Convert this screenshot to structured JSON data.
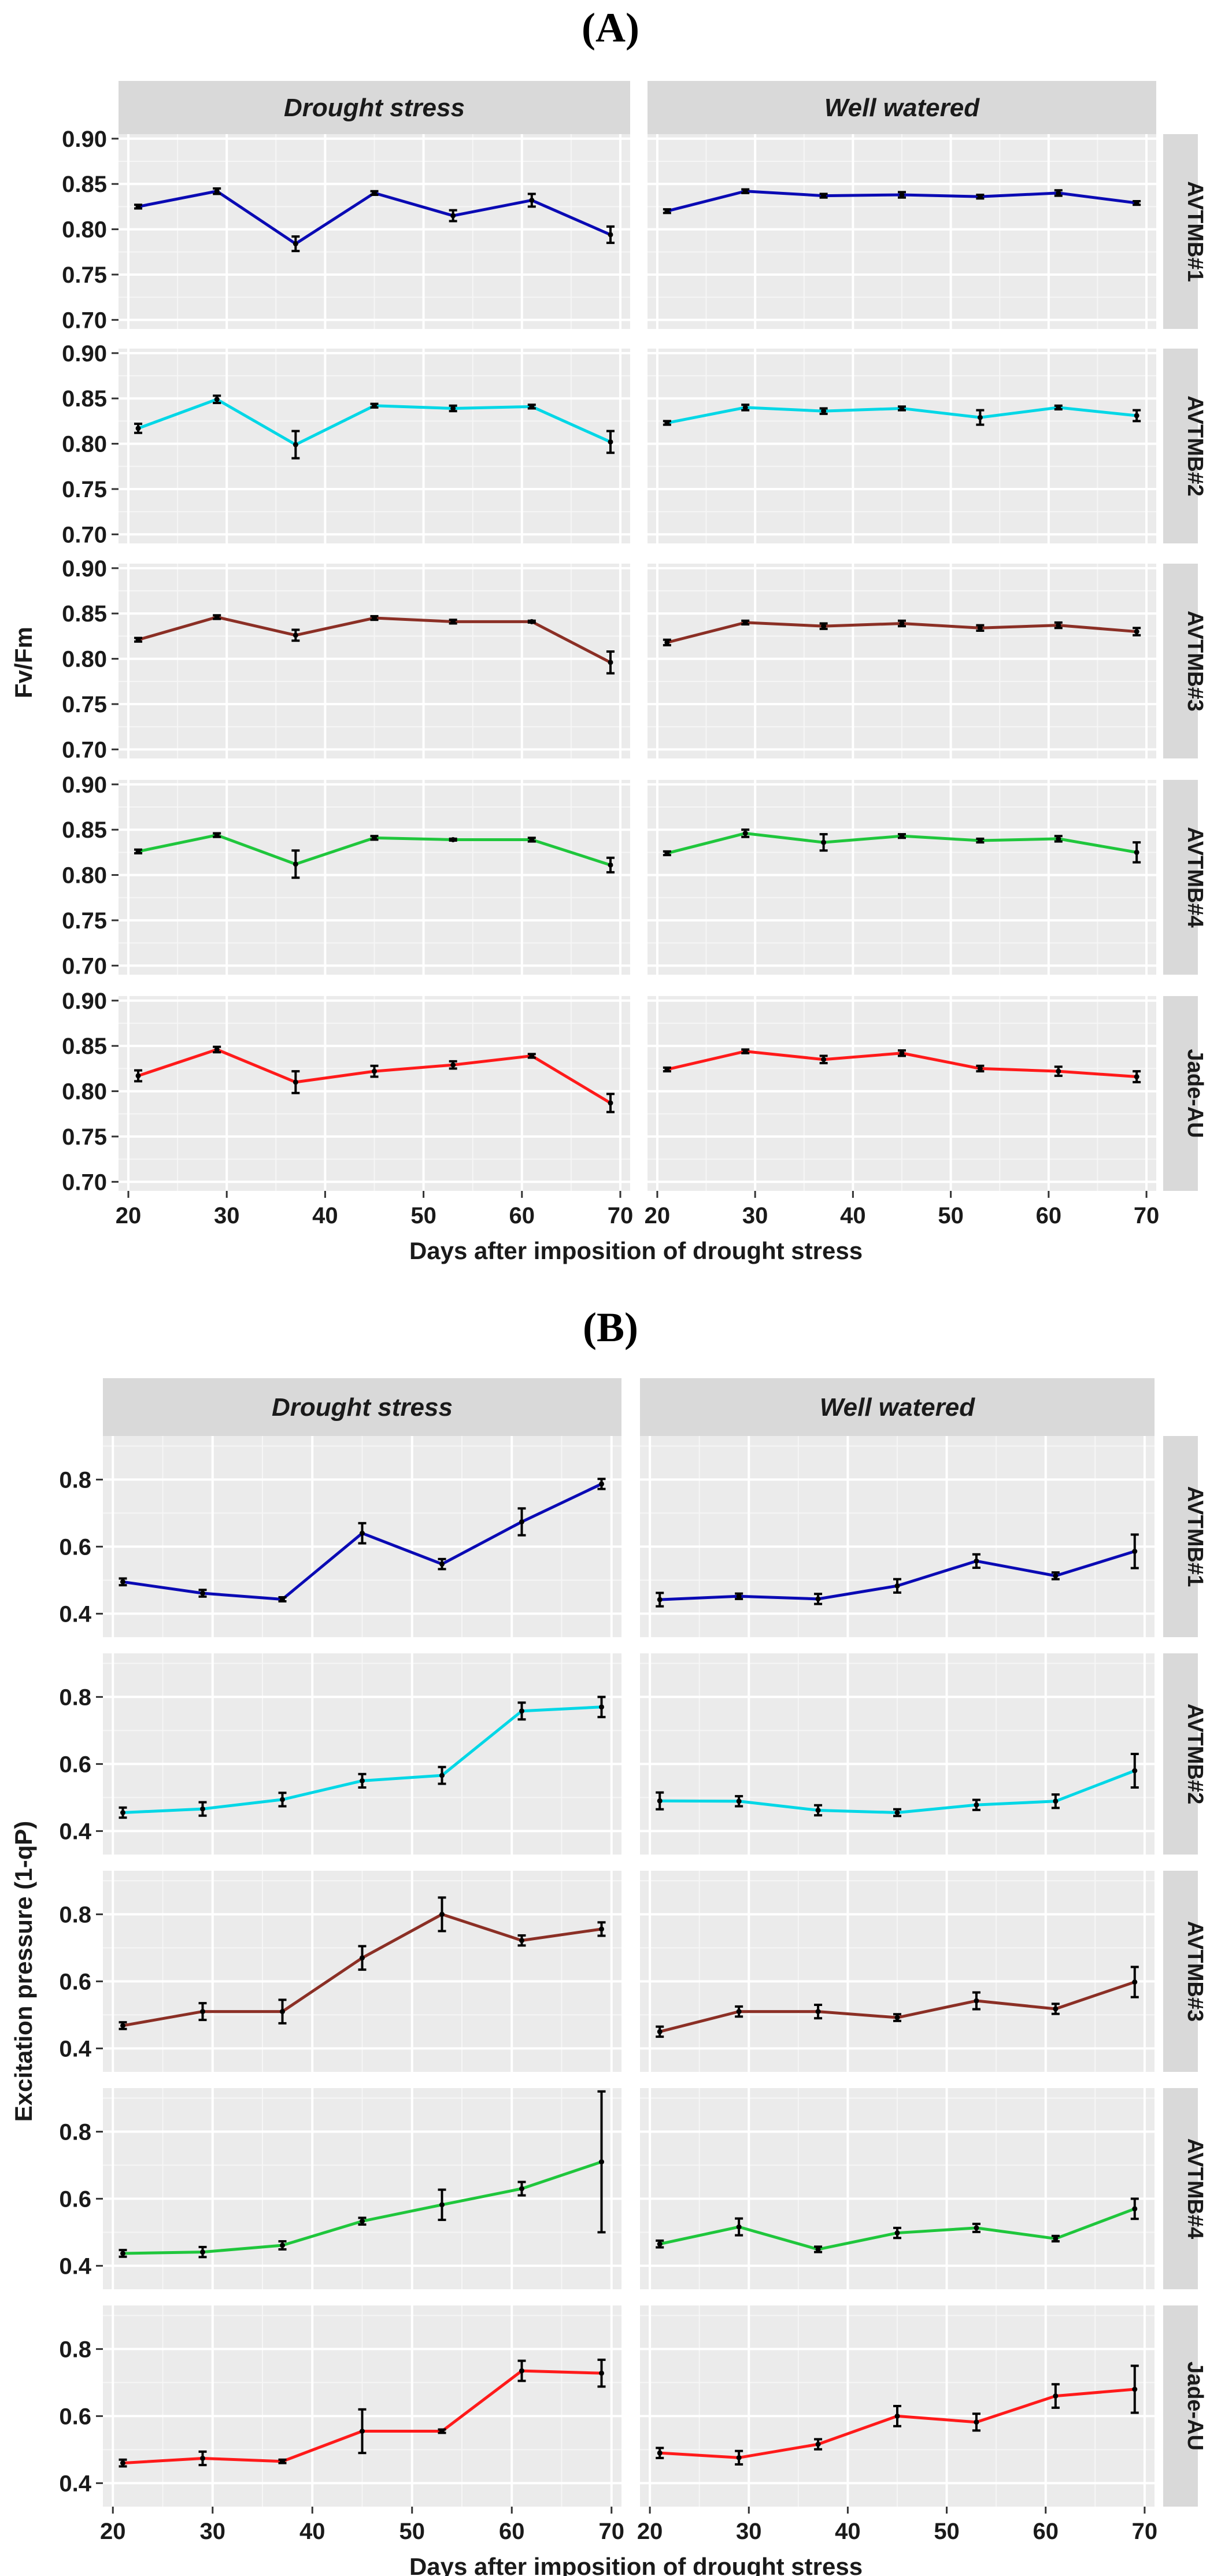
{
  "chart_data": [
    {
      "type": "line",
      "panel_label": "(A)",
      "columns": [
        "Drought stress",
        "Well watered"
      ],
      "rows": [
        "AVTMB#1",
        "AVTMB#2",
        "AVTMB#3",
        "AVTMB#4",
        "Jade-AU"
      ],
      "row_colors": [
        "#0a0ab4",
        "#00d7e6",
        "#8b2f25",
        "#1fc63c",
        "#ff1a1a"
      ],
      "x": [
        21,
        29,
        37,
        45,
        53,
        61,
        69
      ],
      "xticks": [
        20,
        30,
        40,
        50,
        60,
        70
      ],
      "xlim": [
        19,
        71
      ],
      "ylim": [
        0.69,
        0.905
      ],
      "yticks": [
        0.7,
        0.75,
        0.8,
        0.85,
        0.9
      ],
      "ytick_labels": [
        "0.70",
        "0.75",
        "0.80",
        "0.85",
        "0.90"
      ],
      "xlabel": "Days after imposition of drought stress",
      "ylabel": "Fv/Fm",
      "series": [
        {
          "row": "AVTMB#1",
          "column": "Drought stress",
          "values": [
            0.825,
            0.842,
            0.784,
            0.84,
            0.815,
            0.832,
            0.794
          ],
          "errors": [
            0.002,
            0.003,
            0.008,
            0.002,
            0.006,
            0.007,
            0.009
          ]
        },
        {
          "row": "AVTMB#1",
          "column": "Well watered",
          "values": [
            0.82,
            0.842,
            0.837,
            0.838,
            0.836,
            0.84,
            0.829
          ],
          "errors": [
            0.002,
            0.002,
            0.002,
            0.003,
            0.002,
            0.003,
            0.002
          ]
        },
        {
          "row": "AVTMB#2",
          "column": "Drought stress",
          "values": [
            0.817,
            0.849,
            0.799,
            0.842,
            0.839,
            0.841,
            0.802
          ],
          "errors": [
            0.005,
            0.004,
            0.015,
            0.002,
            0.003,
            0.002,
            0.012
          ]
        },
        {
          "row": "AVTMB#2",
          "column": "Well watered",
          "values": [
            0.823,
            0.84,
            0.836,
            0.839,
            0.829,
            0.84,
            0.831
          ],
          "errors": [
            0.002,
            0.003,
            0.003,
            0.002,
            0.008,
            0.002,
            0.006
          ]
        },
        {
          "row": "AVTMB#3",
          "column": "Drought stress",
          "values": [
            0.821,
            0.846,
            0.826,
            0.845,
            0.841,
            0.841,
            0.796
          ],
          "errors": [
            0.002,
            0.002,
            0.006,
            0.002,
            0.002,
            0.001,
            0.012
          ]
        },
        {
          "row": "AVTMB#3",
          "column": "Well watered",
          "values": [
            0.818,
            0.84,
            0.836,
            0.839,
            0.834,
            0.837,
            0.83
          ],
          "errors": [
            0.003,
            0.002,
            0.003,
            0.003,
            0.003,
            0.003,
            0.004
          ]
        },
        {
          "row": "AVTMB#4",
          "column": "Drought stress",
          "values": [
            0.826,
            0.844,
            0.812,
            0.841,
            0.839,
            0.839,
            0.811
          ],
          "errors": [
            0.002,
            0.002,
            0.015,
            0.002,
            0.001,
            0.002,
            0.008
          ]
        },
        {
          "row": "AVTMB#4",
          "column": "Well watered",
          "values": [
            0.824,
            0.846,
            0.836,
            0.843,
            0.838,
            0.84,
            0.825
          ],
          "errors": [
            0.002,
            0.004,
            0.009,
            0.002,
            0.002,
            0.003,
            0.011
          ]
        },
        {
          "row": "Jade-AU",
          "column": "Drought stress",
          "values": [
            0.817,
            0.846,
            0.81,
            0.822,
            0.829,
            0.839,
            0.787
          ],
          "errors": [
            0.006,
            0.003,
            0.012,
            0.006,
            0.004,
            0.002,
            0.01
          ]
        },
        {
          "row": "Jade-AU",
          "column": "Well watered",
          "values": [
            0.824,
            0.844,
            0.835,
            0.842,
            0.825,
            0.822,
            0.816
          ],
          "errors": [
            0.002,
            0.002,
            0.004,
            0.003,
            0.003,
            0.005,
            0.006
          ]
        }
      ]
    },
    {
      "type": "line",
      "panel_label": "(B)",
      "columns": [
        "Drought stress",
        "Well watered"
      ],
      "rows": [
        "AVTMB#1",
        "AVTMB#2",
        "AVTMB#3",
        "AVTMB#4",
        "Jade-AU"
      ],
      "row_colors": [
        "#0a0ab4",
        "#00d7e6",
        "#8b2f25",
        "#1fc63c",
        "#ff1a1a"
      ],
      "x": [
        21,
        29,
        37,
        45,
        53,
        61,
        69
      ],
      "xticks": [
        20,
        30,
        40,
        50,
        60,
        70
      ],
      "xlim": [
        19,
        71
      ],
      "ylim": [
        0.33,
        0.93
      ],
      "yticks": [
        0.4,
        0.6,
        0.8
      ],
      "ytick_labels": [
        "0.4",
        "0.6",
        "0.8"
      ],
      "xlabel": "Days after imposition of drought stress",
      "ylabel": "Excitation pressure (1-qP)",
      "series": [
        {
          "row": "AVTMB#1",
          "column": "Drought stress",
          "values": [
            0.495,
            0.461,
            0.443,
            0.64,
            0.548,
            0.674,
            0.787
          ],
          "errors": [
            0.01,
            0.01,
            0.006,
            0.03,
            0.015,
            0.04,
            0.015
          ]
        },
        {
          "row": "AVTMB#1",
          "column": "Well watered",
          "values": [
            0.442,
            0.452,
            0.444,
            0.483,
            0.557,
            0.513,
            0.586
          ],
          "errors": [
            0.02,
            0.008,
            0.015,
            0.02,
            0.02,
            0.01,
            0.05
          ]
        },
        {
          "row": "AVTMB#2",
          "column": "Drought stress",
          "values": [
            0.455,
            0.466,
            0.494,
            0.55,
            0.566,
            0.758,
            0.77
          ],
          "errors": [
            0.015,
            0.02,
            0.02,
            0.02,
            0.025,
            0.025,
            0.03
          ]
        },
        {
          "row": "AVTMB#2",
          "column": "Well watered",
          "values": [
            0.49,
            0.489,
            0.462,
            0.455,
            0.478,
            0.489,
            0.58
          ],
          "errors": [
            0.025,
            0.015,
            0.015,
            0.01,
            0.015,
            0.02,
            0.05
          ]
        },
        {
          "row": "AVTMB#3",
          "column": "Drought stress",
          "values": [
            0.468,
            0.51,
            0.51,
            0.67,
            0.8,
            0.722,
            0.756
          ],
          "errors": [
            0.01,
            0.025,
            0.035,
            0.035,
            0.05,
            0.015,
            0.02
          ]
        },
        {
          "row": "AVTMB#3",
          "column": "Well watered",
          "values": [
            0.45,
            0.51,
            0.51,
            0.492,
            0.542,
            0.518,
            0.598
          ],
          "errors": [
            0.015,
            0.015,
            0.02,
            0.01,
            0.025,
            0.015,
            0.045
          ]
        },
        {
          "row": "AVTMB#4",
          "column": "Drought stress",
          "values": [
            0.437,
            0.441,
            0.461,
            0.533,
            0.582,
            0.63,
            0.71
          ],
          "errors": [
            0.01,
            0.015,
            0.012,
            0.01,
            0.045,
            0.02,
            0.21
          ]
        },
        {
          "row": "AVTMB#4",
          "column": "Well watered",
          "values": [
            0.465,
            0.516,
            0.449,
            0.498,
            0.513,
            0.481,
            0.57
          ],
          "errors": [
            0.01,
            0.025,
            0.008,
            0.015,
            0.012,
            0.008,
            0.03
          ]
        },
        {
          "row": "Jade-AU",
          "column": "Drought stress",
          "values": [
            0.46,
            0.474,
            0.465,
            0.555,
            0.555,
            0.735,
            0.728
          ],
          "errors": [
            0.01,
            0.02,
            0.005,
            0.065,
            0.005,
            0.03,
            0.04
          ]
        },
        {
          "row": "Jade-AU",
          "column": "Well watered",
          "values": [
            0.49,
            0.476,
            0.516,
            0.6,
            0.582,
            0.66,
            0.68
          ],
          "errors": [
            0.015,
            0.02,
            0.015,
            0.03,
            0.025,
            0.035,
            0.07
          ]
        }
      ]
    }
  ]
}
